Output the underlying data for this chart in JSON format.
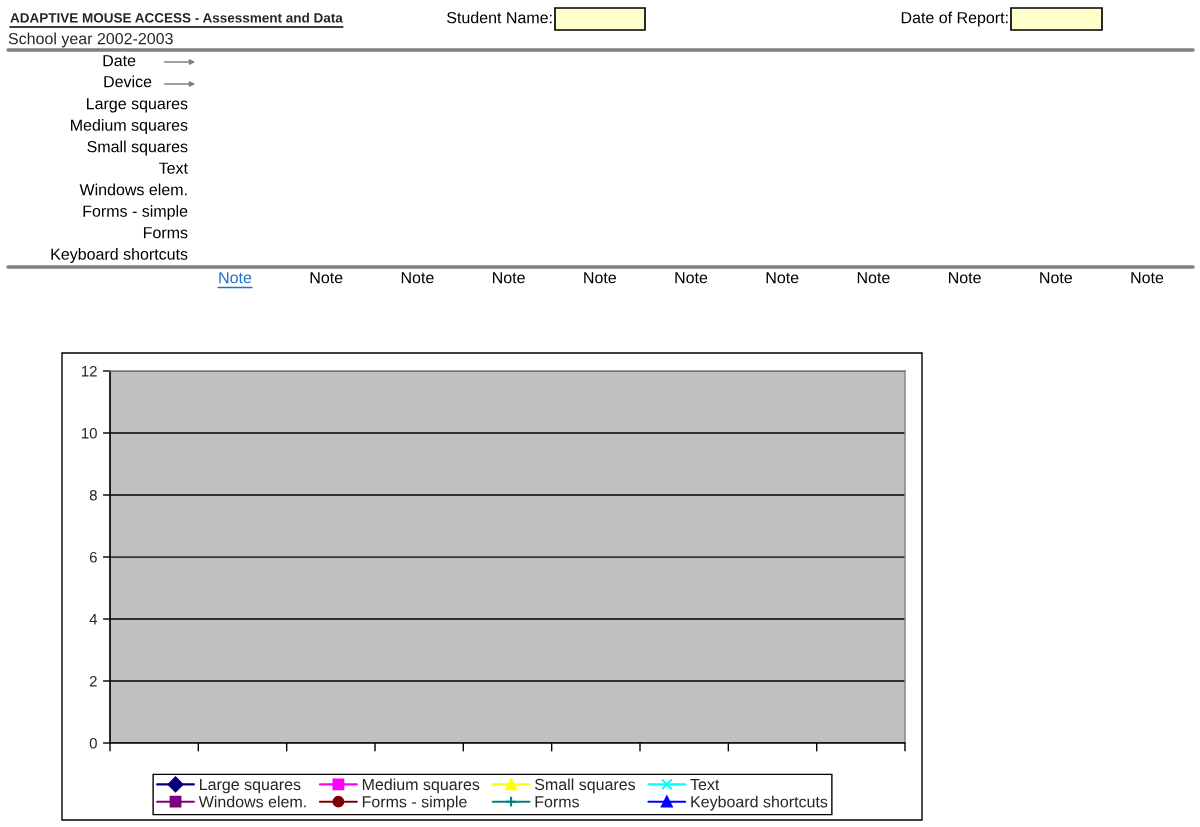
{
  "chart_data": {
    "type": "line",
    "title": "ADAPTIVE MOUSE ACCESS - Assessment and Data",
    "subtitle": "School year 2002-2003",
    "annotations": [
      "Student Name:",
      "Date of Report:",
      "Date",
      "Device",
      "Large squares",
      "Medium squares",
      "Small squares",
      "Text",
      "Windows elem.",
      "Forms - simple",
      "Forms",
      "Keyboard shortcuts",
      "Note",
      "Note",
      "Note",
      "Note",
      "Note",
      "Note",
      "Note",
      "Note",
      "Note",
      "Note",
      "Note"
    ],
    "categories": [
      null,
      null,
      null,
      null,
      null,
      null,
      null,
      null,
      null
    ],
    "series": [
      {
        "name": "Large squares",
        "color": "#000080",
        "marker": "diamond",
        "values": [
          null,
          null,
          null,
          null,
          null,
          null,
          null,
          null,
          null
        ]
      },
      {
        "name": "Medium squares",
        "color": "#ff00ff",
        "marker": "square",
        "values": [
          null,
          null,
          null,
          null,
          null,
          null,
          null,
          null,
          null
        ]
      },
      {
        "name": "Small squares",
        "color": "#ffff00",
        "marker": "triangle",
        "values": [
          null,
          null,
          null,
          null,
          null,
          null,
          null,
          null,
          null
        ]
      },
      {
        "name": "Text",
        "color": "#00ffff",
        "marker": "cross",
        "values": [
          null,
          null,
          null,
          null,
          null,
          null,
          null,
          null,
          null
        ]
      },
      {
        "name": "Windows elem.",
        "color": "#800080",
        "marker": "square",
        "values": [
          null,
          null,
          null,
          null,
          null,
          null,
          null,
          null,
          null
        ]
      },
      {
        "name": "Forms - simple",
        "color": "#800000",
        "marker": "circle",
        "values": [
          null,
          null,
          null,
          null,
          null,
          null,
          null,
          null,
          null
        ]
      },
      {
        "name": "Forms",
        "color": "#008080",
        "marker": "plus",
        "values": [
          null,
          null,
          null,
          null,
          null,
          null,
          null,
          null,
          null
        ]
      },
      {
        "name": "Keyboard shortcuts",
        "color": "#0000ff",
        "marker": "triangle",
        "values": [
          null,
          null,
          null,
          null,
          null,
          null,
          null,
          null,
          null
        ]
      }
    ],
    "ylim": [
      0,
      12
    ],
    "yticks": [
      0,
      2,
      4,
      6,
      8,
      10,
      12
    ],
    "grid": "y",
    "legend": "bottom"
  }
}
